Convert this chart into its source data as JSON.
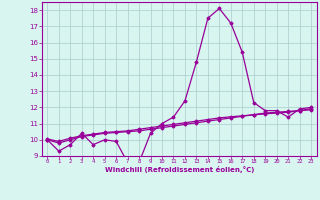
{
  "x": [
    0,
    1,
    2,
    3,
    4,
    5,
    6,
    7,
    8,
    9,
    10,
    11,
    12,
    13,
    14,
    15,
    16,
    17,
    18,
    19,
    20,
    21,
    22,
    23
  ],
  "main_y": [
    10.0,
    9.3,
    9.7,
    10.4,
    9.7,
    10.0,
    9.9,
    8.6,
    8.6,
    10.4,
    11.0,
    11.4,
    12.4,
    14.8,
    17.5,
    18.1,
    17.2,
    15.4,
    12.3,
    11.8,
    11.8,
    11.4,
    11.9,
    12.0
  ],
  "line2_y": [
    10.0,
    9.8,
    10.0,
    10.2,
    10.3,
    10.4,
    10.45,
    10.5,
    10.55,
    10.65,
    10.75,
    10.85,
    10.95,
    11.05,
    11.15,
    11.25,
    11.35,
    11.45,
    11.55,
    11.65,
    11.7,
    11.75,
    11.8,
    11.85
  ],
  "line3_y": [
    10.05,
    9.9,
    10.1,
    10.25,
    10.35,
    10.45,
    10.5,
    10.55,
    10.65,
    10.75,
    10.85,
    10.95,
    11.05,
    11.15,
    11.25,
    11.35,
    11.42,
    11.48,
    11.54,
    11.6,
    11.65,
    11.7,
    11.8,
    11.92
  ],
  "line_color": "#990099",
  "bg_color": "#d8f5f0",
  "grid_color": "#aacccc",
  "xlabel": "Windchill (Refroidissement éolien,°C)",
  "ylim": [
    9.0,
    18.5
  ],
  "xlim": [
    -0.5,
    23.5
  ],
  "yticks": [
    9,
    10,
    11,
    12,
    13,
    14,
    15,
    16,
    17,
    18
  ],
  "xticks": [
    0,
    1,
    2,
    3,
    4,
    5,
    6,
    7,
    8,
    9,
    10,
    11,
    12,
    13,
    14,
    15,
    16,
    17,
    18,
    19,
    20,
    21,
    22,
    23
  ]
}
